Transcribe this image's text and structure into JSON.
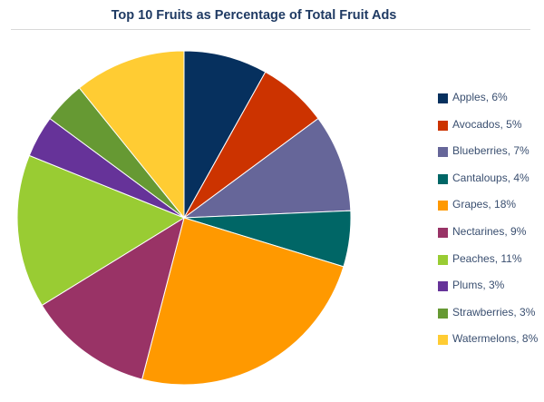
{
  "chart_data": {
    "type": "pie",
    "title": "Top 10 Fruits as Percentage of Total Fruit Ads",
    "legend_position": "right",
    "slices": [
      {
        "label": "Apples",
        "legend_text": "Apples, 6%",
        "value": 6,
        "color": "#06305e"
      },
      {
        "label": "Avocados",
        "legend_text": "Avocados, 5%",
        "value": 5,
        "color": "#cc3300"
      },
      {
        "label": "Blueberries",
        "legend_text": "Blueberries, 7%",
        "value": 7,
        "color": "#666699"
      },
      {
        "label": "Cantaloups",
        "legend_text": "Cantaloups, 4%",
        "value": 4,
        "color": "#006666"
      },
      {
        "label": "Grapes",
        "legend_text": "Grapes, 18%",
        "value": 18,
        "color": "#ff9900"
      },
      {
        "label": "Nectarines",
        "legend_text": "Nectarines, 9%",
        "value": 9,
        "color": "#993366"
      },
      {
        "label": "Peaches",
        "legend_text": "Peaches, 11%",
        "value": 11,
        "color": "#99cc33"
      },
      {
        "label": "Plums",
        "legend_text": "Plums, 3%",
        "value": 3,
        "color": "#663399"
      },
      {
        "label": "Strawberries",
        "legend_text": "Strawberries, 3%",
        "value": 3,
        "color": "#669933"
      },
      {
        "label": "Watermelons",
        "legend_text": "Watermelons, 8%",
        "value": 8,
        "color": "#ffcc33"
      }
    ]
  }
}
